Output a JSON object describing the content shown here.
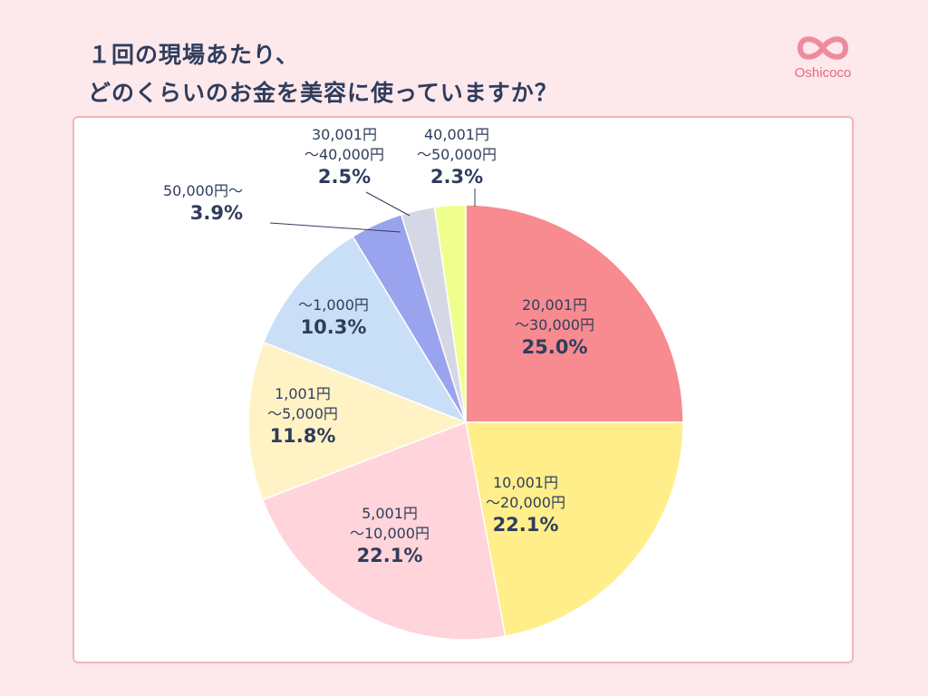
{
  "title": {
    "line1": "１回の現場あたり、",
    "line2": "どのくらいのお金を美容に使っていますか？"
  },
  "logo": {
    "text": "Oshicoco",
    "icon": "infinity-heart-icon",
    "color": "#e46a7e"
  },
  "colors": {
    "background": "#fde8ec",
    "card_border": "#f6b3bf",
    "label_text": "#2f3d5c"
  },
  "chart_data": {
    "type": "pie",
    "start": "top, clockwise",
    "slices": [
      {
        "label": [
          "20,001円",
          "〜30,000円"
        ],
        "value": 25.0,
        "pct": "25.0%",
        "color": "#f78b90"
      },
      {
        "label": [
          "10,001円",
          "〜20,000円"
        ],
        "value": 22.1,
        "pct": "22.1%",
        "color": "#ffee8a"
      },
      {
        "label": [
          "5,001円",
          "〜10,000円"
        ],
        "value": 22.1,
        "pct": "22.1%",
        "color": "#ffd4da"
      },
      {
        "label": [
          "1,001円",
          "〜5,000円"
        ],
        "value": 11.8,
        "pct": "11.8%",
        "color": "#fff3c6"
      },
      {
        "label": [
          "〜1,000円"
        ],
        "value": 10.3,
        "pct": "10.3%",
        "color": "#c9dff8"
      },
      {
        "label": [
          "50,000円〜"
        ],
        "value": 3.9,
        "pct": "3.9%",
        "color": "#9aa4ee"
      },
      {
        "label": [
          "30,001円",
          "〜40,000円"
        ],
        "value": 2.5,
        "pct": "2.5%",
        "color": "#d5d7e5"
      },
      {
        "label": [
          "40,001円",
          "〜50,000円"
        ],
        "value": 2.3,
        "pct": "2.3%",
        "color": "#efff8e"
      }
    ]
  }
}
